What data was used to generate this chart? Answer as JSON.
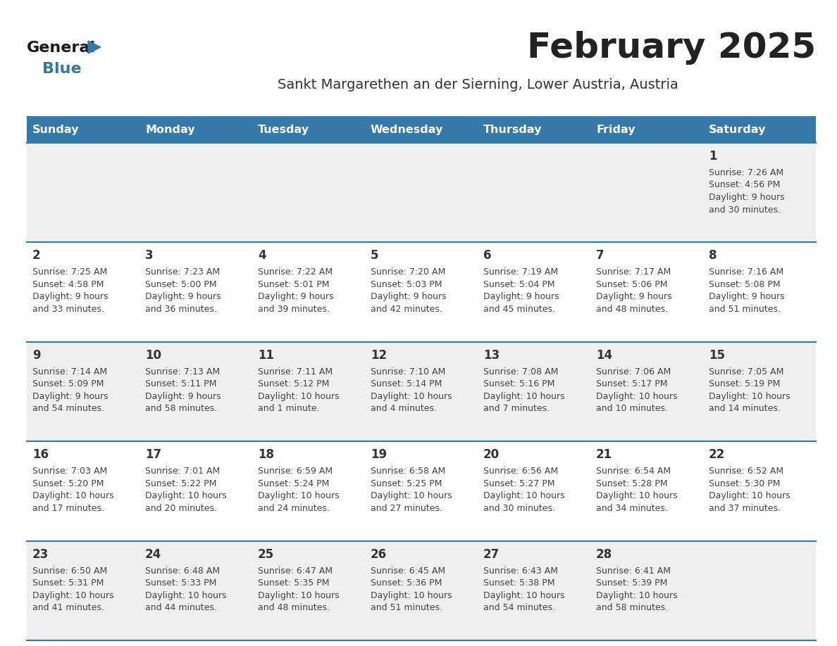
{
  "title": "February 2025",
  "subtitle": "Sankt Margarethen an der Sierning, Lower Austria, Austria",
  "days_of_week": [
    "Sunday",
    "Monday",
    "Tuesday",
    "Wednesday",
    "Thursday",
    "Friday",
    "Saturday"
  ],
  "header_bg": "#3579a8",
  "header_text": "#ffffff",
  "row_bg_light": "#efefef",
  "row_bg_white": "#ffffff",
  "separator_color": "#3579a8",
  "date_color": "#333333",
  "info_color": "#444444",
  "title_color": "#222222",
  "subtitle_color": "#333333",
  "calendar": [
    [
      null,
      null,
      null,
      null,
      null,
      null,
      {
        "day": 1,
        "sunrise": "7:26 AM",
        "sunset": "4:56 PM",
        "daylight": "9 hours",
        "daylight2": "and 30 minutes."
      }
    ],
    [
      {
        "day": 2,
        "sunrise": "7:25 AM",
        "sunset": "4:58 PM",
        "daylight": "9 hours",
        "daylight2": "and 33 minutes."
      },
      {
        "day": 3,
        "sunrise": "7:23 AM",
        "sunset": "5:00 PM",
        "daylight": "9 hours",
        "daylight2": "and 36 minutes."
      },
      {
        "day": 4,
        "sunrise": "7:22 AM",
        "sunset": "5:01 PM",
        "daylight": "9 hours",
        "daylight2": "and 39 minutes."
      },
      {
        "day": 5,
        "sunrise": "7:20 AM",
        "sunset": "5:03 PM",
        "daylight": "9 hours",
        "daylight2": "and 42 minutes."
      },
      {
        "day": 6,
        "sunrise": "7:19 AM",
        "sunset": "5:04 PM",
        "daylight": "9 hours",
        "daylight2": "and 45 minutes."
      },
      {
        "day": 7,
        "sunrise": "7:17 AM",
        "sunset": "5:06 PM",
        "daylight": "9 hours",
        "daylight2": "and 48 minutes."
      },
      {
        "day": 8,
        "sunrise": "7:16 AM",
        "sunset": "5:08 PM",
        "daylight": "9 hours",
        "daylight2": "and 51 minutes."
      }
    ],
    [
      {
        "day": 9,
        "sunrise": "7:14 AM",
        "sunset": "5:09 PM",
        "daylight": "9 hours",
        "daylight2": "and 54 minutes."
      },
      {
        "day": 10,
        "sunrise": "7:13 AM",
        "sunset": "5:11 PM",
        "daylight": "9 hours",
        "daylight2": "and 58 minutes."
      },
      {
        "day": 11,
        "sunrise": "7:11 AM",
        "sunset": "5:12 PM",
        "daylight": "10 hours",
        "daylight2": "and 1 minute."
      },
      {
        "day": 12,
        "sunrise": "7:10 AM",
        "sunset": "5:14 PM",
        "daylight": "10 hours",
        "daylight2": "and 4 minutes."
      },
      {
        "day": 13,
        "sunrise": "7:08 AM",
        "sunset": "5:16 PM",
        "daylight": "10 hours",
        "daylight2": "and 7 minutes."
      },
      {
        "day": 14,
        "sunrise": "7:06 AM",
        "sunset": "5:17 PM",
        "daylight": "10 hours",
        "daylight2": "and 10 minutes."
      },
      {
        "day": 15,
        "sunrise": "7:05 AM",
        "sunset": "5:19 PM",
        "daylight": "10 hours",
        "daylight2": "and 14 minutes."
      }
    ],
    [
      {
        "day": 16,
        "sunrise": "7:03 AM",
        "sunset": "5:20 PM",
        "daylight": "10 hours",
        "daylight2": "and 17 minutes."
      },
      {
        "day": 17,
        "sunrise": "7:01 AM",
        "sunset": "5:22 PM",
        "daylight": "10 hours",
        "daylight2": "and 20 minutes."
      },
      {
        "day": 18,
        "sunrise": "6:59 AM",
        "sunset": "5:24 PM",
        "daylight": "10 hours",
        "daylight2": "and 24 minutes."
      },
      {
        "day": 19,
        "sunrise": "6:58 AM",
        "sunset": "5:25 PM",
        "daylight": "10 hours",
        "daylight2": "and 27 minutes."
      },
      {
        "day": 20,
        "sunrise": "6:56 AM",
        "sunset": "5:27 PM",
        "daylight": "10 hours",
        "daylight2": "and 30 minutes."
      },
      {
        "day": 21,
        "sunrise": "6:54 AM",
        "sunset": "5:28 PM",
        "daylight": "10 hours",
        "daylight2": "and 34 minutes."
      },
      {
        "day": 22,
        "sunrise": "6:52 AM",
        "sunset": "5:30 PM",
        "daylight": "10 hours",
        "daylight2": "and 37 minutes."
      }
    ],
    [
      {
        "day": 23,
        "sunrise": "6:50 AM",
        "sunset": "5:31 PM",
        "daylight": "10 hours",
        "daylight2": "and 41 minutes."
      },
      {
        "day": 24,
        "sunrise": "6:48 AM",
        "sunset": "5:33 PM",
        "daylight": "10 hours",
        "daylight2": "and 44 minutes."
      },
      {
        "day": 25,
        "sunrise": "6:47 AM",
        "sunset": "5:35 PM",
        "daylight": "10 hours",
        "daylight2": "and 48 minutes."
      },
      {
        "day": 26,
        "sunrise": "6:45 AM",
        "sunset": "5:36 PM",
        "daylight": "10 hours",
        "daylight2": "and 51 minutes."
      },
      {
        "day": 27,
        "sunrise": "6:43 AM",
        "sunset": "5:38 PM",
        "daylight": "10 hours",
        "daylight2": "and 54 minutes."
      },
      {
        "day": 28,
        "sunrise": "6:41 AM",
        "sunset": "5:39 PM",
        "daylight": "10 hours",
        "daylight2": "and 58 minutes."
      },
      null
    ]
  ]
}
